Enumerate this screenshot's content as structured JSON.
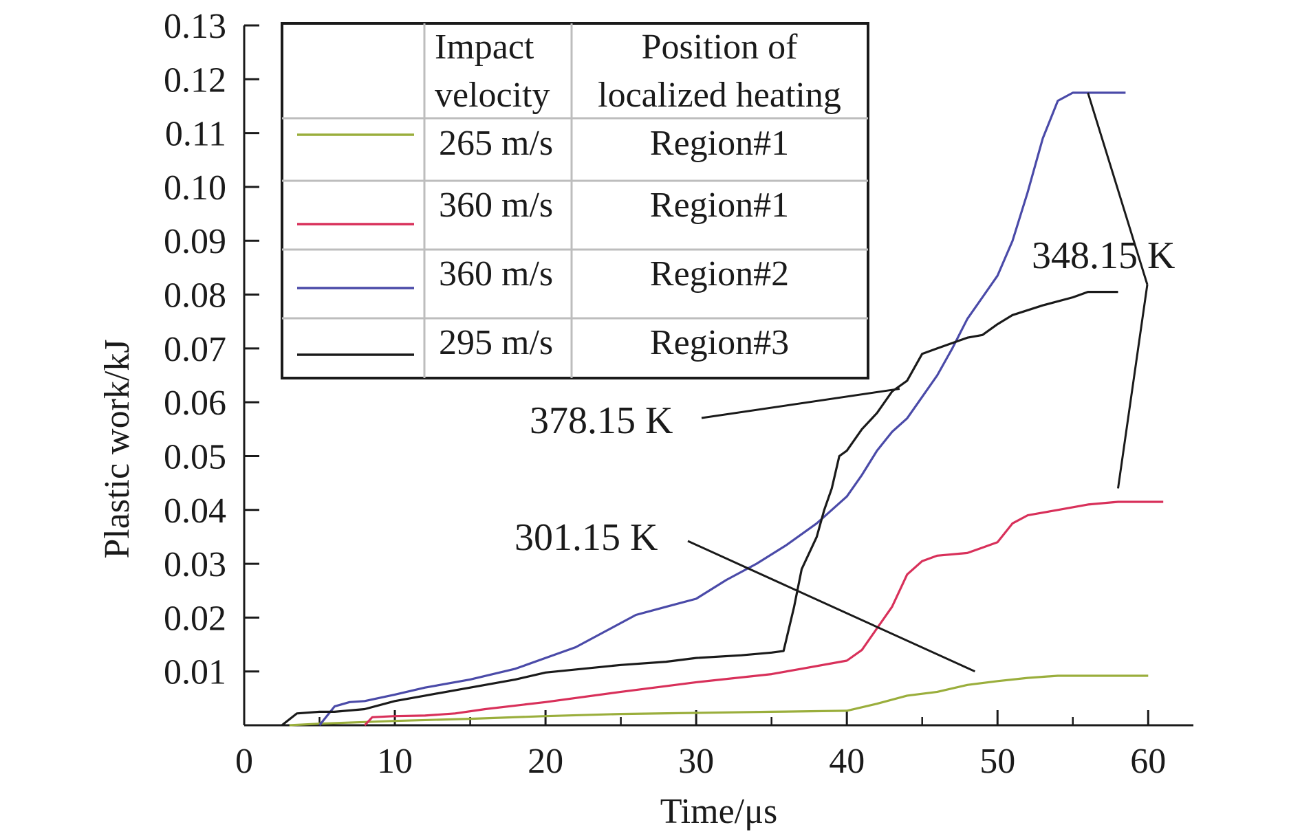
{
  "chart_data": {
    "type": "line",
    "xlabel": "Time/μs",
    "ylabel": "Plastic work/kJ",
    "xlim": [
      0,
      63
    ],
    "ylim": [
      0,
      0.13
    ],
    "x_ticks": [
      0,
      10,
      20,
      30,
      40,
      50,
      60
    ],
    "x_tick_labels": [
      "0",
      "10",
      "20",
      "30",
      "40",
      "50",
      "60"
    ],
    "y_ticks": [
      0.01,
      0.02,
      0.03,
      0.04,
      0.05,
      0.06,
      0.07,
      0.08,
      0.09,
      0.1,
      0.11,
      0.12,
      0.13
    ],
    "y_tick_labels": [
      "0.01",
      "0.02",
      "0.03",
      "0.04",
      "0.05",
      "0.06",
      "0.07",
      "0.08",
      "0.09",
      "0.10",
      "0.11",
      "0.12",
      "0.13"
    ],
    "grid": false,
    "legend": {
      "placement": "top-left",
      "headers": [
        "Impact velocity",
        "Position of localized heating"
      ],
      "header_lines": [
        [
          "Impact",
          "velocity"
        ],
        [
          "Position of",
          "localized heating"
        ]
      ],
      "rows": [
        {
          "velocity": "265 m/s",
          "position": "Region#1",
          "color": "#9aae3c"
        },
        {
          "velocity": "360 m/s",
          "position": "Region#1",
          "color": "#d8305a"
        },
        {
          "velocity": "360 m/s",
          "position": "Region#2",
          "color": "#4a4aa8"
        },
        {
          "velocity": "295 m/s",
          "position": "Region#3",
          "color": "#1a1a1a"
        }
      ]
    },
    "series": [
      {
        "velocity": "265 m/s",
        "position": "Region#1",
        "color": "#9aae3c",
        "points": [
          [
            3,
            0
          ],
          [
            5,
            0.0003
          ],
          [
            8,
            0.0006
          ],
          [
            10,
            0.0008
          ],
          [
            15,
            0.0012
          ],
          [
            20,
            0.0017
          ],
          [
            25,
            0.0021
          ],
          [
            30,
            0.0023
          ],
          [
            35,
            0.0025
          ],
          [
            40,
            0.0027
          ],
          [
            42,
            0.004
          ],
          [
            44,
            0.0055
          ],
          [
            46,
            0.0062
          ],
          [
            48,
            0.0075
          ],
          [
            50,
            0.0082
          ],
          [
            52,
            0.0088
          ],
          [
            54,
            0.0092
          ],
          [
            56,
            0.0092
          ],
          [
            60,
            0.0092
          ]
        ]
      },
      {
        "velocity": "360 m/s",
        "position": "Region#1",
        "color": "#d8305a",
        "points": [
          [
            8,
            0
          ],
          [
            8.5,
            0.0015
          ],
          [
            10,
            0.0017
          ],
          [
            12,
            0.0018
          ],
          [
            14,
            0.0022
          ],
          [
            16,
            0.003
          ],
          [
            20,
            0.0043
          ],
          [
            25,
            0.0062
          ],
          [
            30,
            0.008
          ],
          [
            35,
            0.0095
          ],
          [
            37,
            0.0105
          ],
          [
            40,
            0.012
          ],
          [
            41,
            0.014
          ],
          [
            42,
            0.018
          ],
          [
            43,
            0.022
          ],
          [
            44,
            0.028
          ],
          [
            45,
            0.0305
          ],
          [
            46,
            0.0315
          ],
          [
            48,
            0.032
          ],
          [
            49,
            0.033
          ],
          [
            50,
            0.034
          ],
          [
            51,
            0.0375
          ],
          [
            52,
            0.039
          ],
          [
            53,
            0.0395
          ],
          [
            54,
            0.04
          ],
          [
            56,
            0.041
          ],
          [
            58,
            0.0415
          ],
          [
            61,
            0.0415
          ]
        ]
      },
      {
        "velocity": "360 m/s",
        "position": "Region#2",
        "color": "#4a4aa8",
        "points": [
          [
            5,
            0
          ],
          [
            6,
            0.0035
          ],
          [
            7,
            0.0043
          ],
          [
            8,
            0.0045
          ],
          [
            10,
            0.0057
          ],
          [
            12,
            0.007
          ],
          [
            15,
            0.0085
          ],
          [
            18,
            0.0105
          ],
          [
            20,
            0.0125
          ],
          [
            22,
            0.0145
          ],
          [
            24,
            0.0175
          ],
          [
            26,
            0.0205
          ],
          [
            28,
            0.022
          ],
          [
            30,
            0.0235
          ],
          [
            32,
            0.027
          ],
          [
            34,
            0.03
          ],
          [
            36,
            0.0335
          ],
          [
            38,
            0.0375
          ],
          [
            40,
            0.0425
          ],
          [
            41,
            0.0465
          ],
          [
            42,
            0.051
          ],
          [
            43,
            0.0545
          ],
          [
            44,
            0.057
          ],
          [
            45,
            0.061
          ],
          [
            46,
            0.065
          ],
          [
            47,
            0.07
          ],
          [
            48,
            0.0755
          ],
          [
            49,
            0.0795
          ],
          [
            50,
            0.0835
          ],
          [
            51,
            0.09
          ],
          [
            52,
            0.099
          ],
          [
            53,
            0.109
          ],
          [
            54,
            0.116
          ],
          [
            55,
            0.1175
          ],
          [
            58.5,
            0.1175
          ]
        ]
      },
      {
        "velocity": "295 m/s",
        "position": "Region#3",
        "color": "#1a1a1a",
        "points": [
          [
            2.5,
            0
          ],
          [
            3.5,
            0.0022
          ],
          [
            5,
            0.0025
          ],
          [
            6,
            0.0025
          ],
          [
            8,
            0.003
          ],
          [
            10,
            0.0045
          ],
          [
            12,
            0.0055
          ],
          [
            15,
            0.007
          ],
          [
            18,
            0.0085
          ],
          [
            20,
            0.0098
          ],
          [
            25,
            0.0112
          ],
          [
            28,
            0.0118
          ],
          [
            30,
            0.0125
          ],
          [
            33,
            0.013
          ],
          [
            35,
            0.0135
          ],
          [
            35.8,
            0.0138
          ],
          [
            36.5,
            0.022
          ],
          [
            37,
            0.029
          ],
          [
            38,
            0.035
          ],
          [
            38.5,
            0.04
          ],
          [
            39,
            0.044
          ],
          [
            39.5,
            0.05
          ],
          [
            40,
            0.051
          ],
          [
            41,
            0.055
          ],
          [
            42,
            0.058
          ],
          [
            43,
            0.062
          ],
          [
            44,
            0.064
          ],
          [
            45,
            0.069
          ],
          [
            46,
            0.07
          ],
          [
            47,
            0.071
          ],
          [
            48,
            0.072
          ],
          [
            49,
            0.0725
          ],
          [
            50,
            0.0745
          ],
          [
            51,
            0.0762
          ],
          [
            53,
            0.078
          ],
          [
            55,
            0.0795
          ],
          [
            56,
            0.0805
          ],
          [
            58,
            0.0805
          ]
        ]
      }
    ],
    "annotations": [
      {
        "text": "378.15 K",
        "anchor": [
          35.8,
          0.062
        ],
        "targets": [
          [
            43.5,
            0.0625
          ]
        ]
      },
      {
        "text": "301.15 K",
        "anchor": [
          34.8,
          0.034
        ],
        "targets": [
          [
            48.5,
            0.01
          ]
        ]
      },
      {
        "text": "348.15 K",
        "anchor": [
          57.5,
          0.0875
        ],
        "targets": [
          [
            56,
            0.1175
          ],
          [
            58,
            0.044
          ]
        ]
      }
    ]
  }
}
